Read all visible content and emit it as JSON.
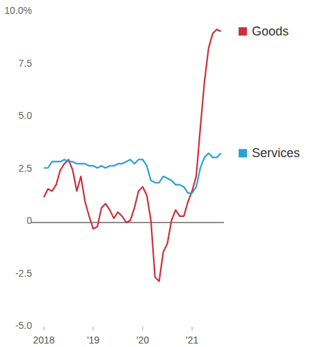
{
  "chart_data": {
    "type": "line",
    "categories": [
      "2018",
      null,
      null,
      null,
      null,
      null,
      null,
      null,
      null,
      null,
      null,
      null,
      "'19",
      null,
      null,
      null,
      null,
      null,
      null,
      null,
      null,
      null,
      null,
      null,
      "'20",
      null,
      null,
      null,
      null,
      null,
      null,
      null,
      null,
      null,
      null,
      null,
      "'21",
      null,
      null,
      null,
      null,
      null,
      null,
      null
    ],
    "series": [
      {
        "name": "Goods",
        "color": "#cc2f3b",
        "values": [
          1.2,
          1.6,
          1.5,
          1.8,
          2.5,
          2.8,
          3.0,
          2.5,
          1.5,
          2.2,
          1.0,
          0.3,
          -0.3,
          -0.2,
          0.7,
          0.9,
          0.6,
          0.2,
          0.5,
          0.3,
          0.0,
          0.1,
          0.7,
          1.5,
          1.7,
          1.3,
          0.1,
          -2.6,
          -2.8,
          -1.4,
          -1.0,
          0.1,
          0.6,
          0.3,
          0.3,
          1.0,
          1.5,
          2.2,
          4.5,
          6.7,
          8.3,
          9.0,
          9.2,
          9.1
        ]
      },
      {
        "name": "Services",
        "color": "#2a9fd8",
        "values": [
          2.6,
          2.6,
          2.9,
          2.9,
          2.9,
          3.0,
          2.9,
          2.9,
          2.8,
          2.8,
          2.8,
          2.7,
          2.7,
          2.6,
          2.7,
          2.6,
          2.7,
          2.7,
          2.8,
          2.8,
          2.9,
          3.0,
          2.8,
          3.0,
          3.0,
          2.7,
          2.0,
          1.9,
          1.9,
          2.2,
          2.1,
          2.0,
          1.8,
          1.8,
          1.7,
          1.4,
          1.4,
          1.7,
          2.6,
          3.1,
          3.3,
          3.1,
          3.1,
          3.3
        ]
      }
    ],
    "ylim": [
      -5,
      10
    ],
    "yticks": [
      {
        "value": 10,
        "label": "10.0%"
      },
      {
        "value": 7.5,
        "label": "7.5"
      },
      {
        "value": 5,
        "label": "5.0"
      },
      2.5,
      0,
      -2.5,
      {
        "value": -5,
        "label": "-5.0"
      }
    ],
    "grid": false,
    "legend": "right"
  }
}
